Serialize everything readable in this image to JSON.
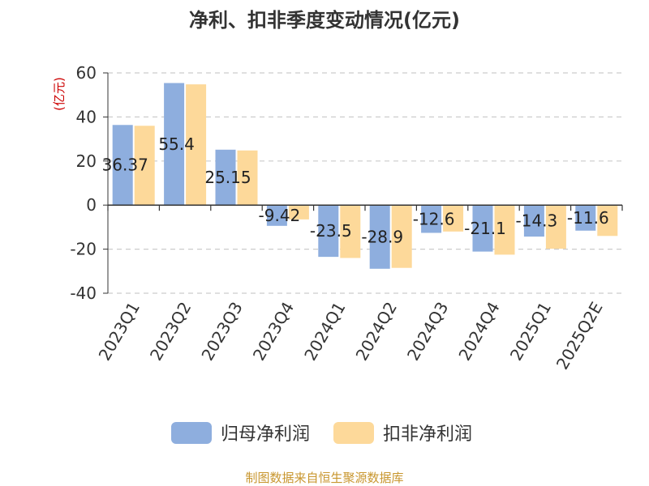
{
  "chart_data": {
    "type": "bar",
    "title": "净利、扣非季度变动情况(亿元)",
    "ylabel": "(亿元)",
    "ylim": [
      -40,
      60
    ],
    "yticks": [
      -40,
      -20,
      0,
      20,
      40,
      60
    ],
    "grid": true,
    "legend_position": "bottom",
    "categories": [
      "2023Q1",
      "2023Q2",
      "2023Q3",
      "2023Q4",
      "2024Q1",
      "2024Q2",
      "2024Q3",
      "2024Q4",
      "2025Q1",
      "2025Q2E"
    ],
    "series": [
      {
        "name": "归母净利润",
        "color": "#8eaede",
        "values": [
          36.37,
          55.4,
          25.15,
          -9.42,
          -23.5,
          -28.9,
          -12.6,
          -21.1,
          -14.3,
          -11.6
        ],
        "labels": [
          "36.37",
          "55.4",
          "25.15",
          "-9.42",
          "-23.5",
          "-28.9",
          "-12.6",
          "-21.1",
          "-14.3",
          "-11.6"
        ]
      },
      {
        "name": "扣非净利润",
        "color": "#fdd99a",
        "values": [
          36.0,
          54.8,
          24.8,
          -6.5,
          -24.0,
          -28.5,
          -12.0,
          -22.5,
          -19.8,
          -14.0
        ]
      }
    ],
    "label_color": "#222222",
    "axis_color": "#333333",
    "grid_color": "#cccccc",
    "ylabel_color": "#cc0000"
  },
  "footer": {
    "source": "制图数据来自恒生聚源数据库",
    "color": "#c8962e"
  }
}
